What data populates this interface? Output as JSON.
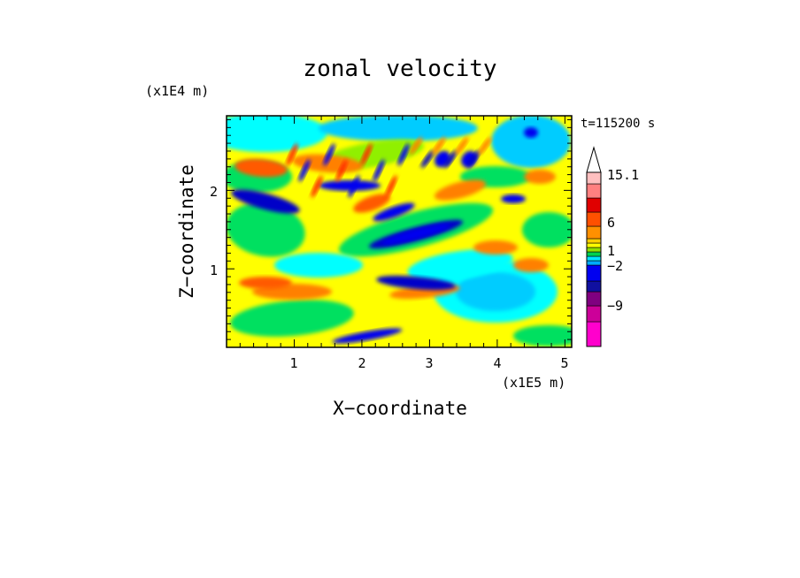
{
  "chart_data": {
    "type": "heatmap",
    "title": "zonal velocity",
    "xlabel": "X−coordinate",
    "ylabel": "Z−coordinate",
    "x_unit": "(x1E5 m)",
    "y_unit": "(x1E4 m)",
    "time_label": "t=115200 s",
    "x_ticks": [
      "1",
      "2",
      "3",
      "4",
      "5"
    ],
    "y_ticks": [
      "1",
      "2"
    ],
    "xlim": [
      0,
      5.1
    ],
    "ylim": [
      0,
      2.95
    ],
    "colorbar": {
      "tick_labels": [
        "15.1",
        "6",
        "1",
        "−2",
        "−9"
      ],
      "colors": [
        "#ff00cc",
        "#cc0099",
        "#800080",
        "#1010a0",
        "#0000f0",
        "#00aaff",
        "#00e5ff",
        "#00d050",
        "#90e000",
        "#ffff00",
        "#ffd000",
        "#ff9000",
        "#ff5000",
        "#e00000",
        "#ff8080",
        "#ffc0c0"
      ]
    }
  }
}
